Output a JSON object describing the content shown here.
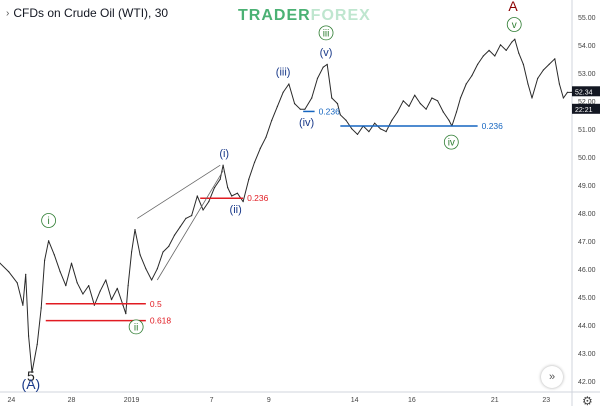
{
  "title": {
    "chevron": "›",
    "text": "CFDs on Crude Oil (WTI), 30"
  },
  "watermark": {
    "part1": "TRADER",
    "part2": "FOREX"
  },
  "buttons": {
    "scroll_icon": "»",
    "settings_icon": "⚙"
  },
  "chart_data": {
    "type": "line",
    "ylim": [
      41.6,
      55.6
    ],
    "xlim": [
      0,
      100
    ],
    "y_ticks": [
      42,
      43,
      44,
      45,
      46,
      47,
      48,
      49,
      50,
      51,
      52,
      53,
      54,
      55
    ],
    "y_tick_labels": [
      "42.00",
      "43.00",
      "44.00",
      "45.00",
      "46.00",
      "47.00",
      "48.00",
      "49.00",
      "50.00",
      "51.00",
      "52.00",
      "53.00",
      "54.00",
      "55.00"
    ],
    "x_ticks": [
      {
        "x": 2,
        "label": "24"
      },
      {
        "x": 12.5,
        "label": "28"
      },
      {
        "x": 23,
        "label": "2019"
      },
      {
        "x": 37,
        "label": "7"
      },
      {
        "x": 47,
        "label": "9"
      },
      {
        "x": 62,
        "label": "14"
      },
      {
        "x": 72,
        "label": "16"
      },
      {
        "x": 86.5,
        "label": "21"
      },
      {
        "x": 95.5,
        "label": "23"
      }
    ],
    "price_line": [
      [
        0,
        46.2
      ],
      [
        1.5,
        45.9
      ],
      [
        3,
        45.5
      ],
      [
        4,
        44.7
      ],
      [
        4.5,
        45.8
      ],
      [
        5,
        43.6
      ],
      [
        5.6,
        42.3
      ],
      [
        6.5,
        43.3
      ],
      [
        7.2,
        44.6
      ],
      [
        7.8,
        46.3
      ],
      [
        8.5,
        47.0
      ],
      [
        9.5,
        46.5
      ],
      [
        10.5,
        45.9
      ],
      [
        11.5,
        45.4
      ],
      [
        12.5,
        46.2
      ],
      [
        13.5,
        45.5
      ],
      [
        14.5,
        45.1
      ],
      [
        15.5,
        45.4
      ],
      [
        16.5,
        44.7
      ],
      [
        17.5,
        45.2
      ],
      [
        18.5,
        45.6
      ],
      [
        19.5,
        44.9
      ],
      [
        20.5,
        45.3
      ],
      [
        21.5,
        44.7
      ],
      [
        22,
        44.4
      ],
      [
        22.4,
        45.4
      ],
      [
        23,
        46.6
      ],
      [
        23.6,
        47.4
      ],
      [
        24.5,
        46.5
      ],
      [
        25.5,
        46.0
      ],
      [
        26.5,
        45.6
      ],
      [
        27.5,
        46.0
      ],
      [
        28.5,
        46.6
      ],
      [
        29.5,
        46.8
      ],
      [
        30.5,
        47.2
      ],
      [
        31.5,
        47.5
      ],
      [
        32.5,
        47.8
      ],
      [
        33.5,
        47.9
      ],
      [
        34.5,
        48.6
      ],
      [
        35.5,
        48.1
      ],
      [
        36.5,
        48.4
      ],
      [
        37.5,
        48.9
      ],
      [
        38.5,
        49.2
      ],
      [
        39,
        49.7
      ],
      [
        39.8,
        48.9
      ],
      [
        40.5,
        48.6
      ],
      [
        41.5,
        48.7
      ],
      [
        42.5,
        48.4
      ],
      [
        43.5,
        49.2
      ],
      [
        44.5,
        49.8
      ],
      [
        45.5,
        50.3
      ],
      [
        46.5,
        50.7
      ],
      [
        47.5,
        51.3
      ],
      [
        48.5,
        51.8
      ],
      [
        49.5,
        52.3
      ],
      [
        50.5,
        52.6
      ],
      [
        51.5,
        51.9
      ],
      [
        52.5,
        51.7
      ],
      [
        53.3,
        51.7
      ],
      [
        54.5,
        52.1
      ],
      [
        55.5,
        52.8
      ],
      [
        56.5,
        53.2
      ],
      [
        57.2,
        53.3
      ],
      [
        58,
        52.1
      ],
      [
        59,
        51.9
      ],
      [
        59.5,
        51.5
      ],
      [
        60.5,
        51.3
      ],
      [
        61.5,
        51.0
      ],
      [
        62.5,
        50.8
      ],
      [
        63.5,
        51.1
      ],
      [
        64.5,
        50.9
      ],
      [
        65.5,
        51.2
      ],
      [
        66.5,
        51.0
      ],
      [
        67.5,
        50.9
      ],
      [
        68.5,
        51.3
      ],
      [
        69.5,
        51.6
      ],
      [
        70.5,
        52.0
      ],
      [
        71.5,
        51.8
      ],
      [
        72.5,
        52.2
      ],
      [
        73.5,
        51.9
      ],
      [
        74.5,
        51.7
      ],
      [
        75.5,
        52.1
      ],
      [
        76.5,
        52.0
      ],
      [
        77.5,
        51.6
      ],
      [
        78.5,
        51.3
      ],
      [
        79,
        51.1
      ],
      [
        79.8,
        51.6
      ],
      [
        80.5,
        52.1
      ],
      [
        81.5,
        52.6
      ],
      [
        82.5,
        52.9
      ],
      [
        83.5,
        53.3
      ],
      [
        84.5,
        53.6
      ],
      [
        85.5,
        53.8
      ],
      [
        86.5,
        53.6
      ],
      [
        87.5,
        54.0
      ],
      [
        88.5,
        53.8
      ],
      [
        89.5,
        54.1
      ],
      [
        90,
        54.2
      ],
      [
        90.7,
        53.7
      ],
      [
        91.5,
        53.3
      ],
      [
        92.3,
        52.6
      ],
      [
        93,
        52.1
      ],
      [
        94,
        52.8
      ],
      [
        95,
        53.1
      ],
      [
        96,
        53.3
      ],
      [
        97,
        53.5
      ],
      [
        97.8,
        52.6
      ],
      [
        98.5,
        52.1
      ],
      [
        99.2,
        52.3
      ],
      [
        100,
        52.3
      ]
    ],
    "fib_levels": [
      {
        "x1": 8,
        "x2": 25.5,
        "y": 44.75,
        "label": "0.5",
        "color": "#e11b22"
      },
      {
        "x1": 8,
        "x2": 25.5,
        "y": 44.15,
        "label": "0.618",
        "color": "#e11b22"
      },
      {
        "x1": 35,
        "x2": 42.5,
        "y": 48.52,
        "label": "0.236",
        "color": "#e11b22"
      },
      {
        "x1": 53,
        "x2": 55,
        "y": 51.62,
        "label": "0.236",
        "color": "#1565c0"
      },
      {
        "x1": 59.5,
        "x2": 83.5,
        "y": 51.1,
        "label": "0.236",
        "color": "#1565c0"
      }
    ],
    "channel_lines": [
      {
        "x1": 24,
        "y1": 47.8,
        "x2": 38.5,
        "y2": 49.7
      },
      {
        "x1": 27.5,
        "y1": 45.6,
        "x2": 39,
        "y2": 49.5
      }
    ],
    "wave_labels": [
      {
        "text": "5",
        "x": 5.4,
        "y": 42.0,
        "color": "#222",
        "size": 14
      },
      {
        "text": "(A)",
        "x": 5.4,
        "y": 41.7,
        "color": "#1a3a8a",
        "size": 14
      },
      {
        "text": "i",
        "x": 8.5,
        "y": 47.6,
        "color": "#2e7d32",
        "size": 10,
        "circle": true
      },
      {
        "text": "ii",
        "x": 23.8,
        "y": 43.8,
        "color": "#2e7d32",
        "size": 10,
        "circle": true
      },
      {
        "text": "(i)",
        "x": 39.2,
        "y": 50.0,
        "color": "#1a3a8a",
        "size": 11
      },
      {
        "text": "(ii)",
        "x": 41.2,
        "y": 48.0,
        "color": "#1a3a8a",
        "size": 11
      },
      {
        "text": "(iii)",
        "x": 49.5,
        "y": 52.9,
        "color": "#1a3a8a",
        "size": 11
      },
      {
        "text": "(iv)",
        "x": 53.6,
        "y": 51.1,
        "color": "#1a3a8a",
        "size": 11
      },
      {
        "text": "iii",
        "x": 57.0,
        "y": 54.3,
        "color": "#2e7d32",
        "size": 10,
        "circle": true
      },
      {
        "text": "(v)",
        "x": 57.0,
        "y": 53.6,
        "color": "#1a3a8a",
        "size": 11
      },
      {
        "text": "iv",
        "x": 78.9,
        "y": 50.4,
        "color": "#2e7d32",
        "size": 10,
        "circle": true
      },
      {
        "text": "A",
        "x": 89.7,
        "y": 55.2,
        "color": "#8b0000",
        "size": 14
      },
      {
        "text": "v",
        "x": 89.9,
        "y": 54.6,
        "color": "#2e7d32",
        "size": 10,
        "circle": true
      }
    ],
    "price_tags": [
      {
        "label": "52.34",
        "y": 52.34,
        "bg": "#131722",
        "fg": "#ffffff"
      },
      {
        "label": "22:21",
        "y": 52.0,
        "bg": "#131722",
        "fg": "#ffffff"
      }
    ]
  }
}
